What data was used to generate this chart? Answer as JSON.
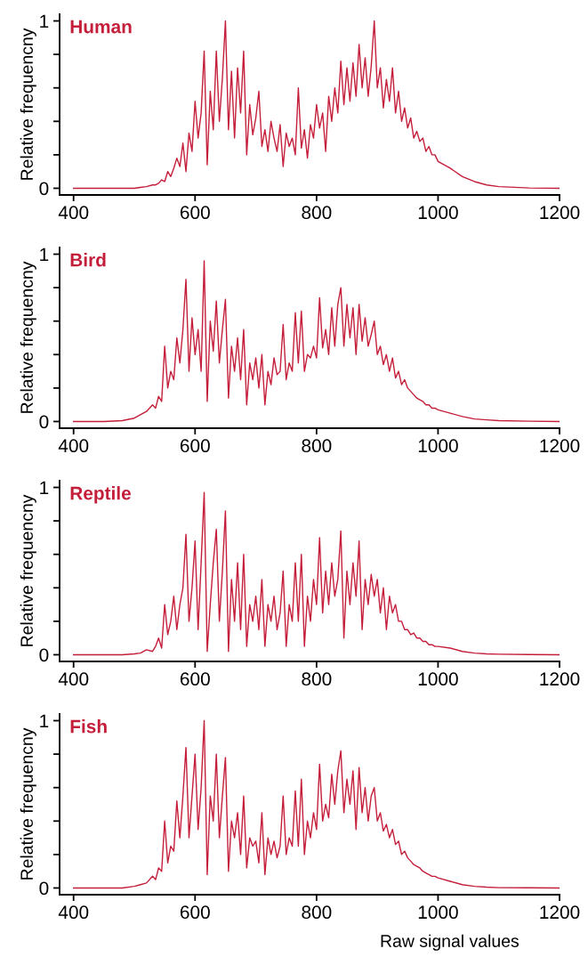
{
  "chart_data": [
    {
      "type": "line",
      "title": "Human",
      "ylabel": "Relative frequencny",
      "color": "#c41e3a",
      "xlim": [
        377,
        1200
      ],
      "ylim": [
        -0.04,
        1.04
      ],
      "xticks": [
        400,
        600,
        800,
        1000,
        1200
      ],
      "yticks": [
        0,
        {
          "value": 0.2,
          "label": null
        },
        {
          "value": 0.4,
          "label": null
        },
        {
          "value": 0.6,
          "label": null
        },
        {
          "value": 0.8,
          "label": null
        },
        1
      ],
      "x": [
        400,
        450,
        480,
        500,
        510,
        520,
        530,
        535,
        540,
        545,
        550,
        555,
        560,
        565,
        570,
        575,
        580,
        585,
        590,
        595,
        600,
        605,
        610,
        615,
        620,
        625,
        630,
        635,
        640,
        645,
        650,
        655,
        660,
        665,
        670,
        675,
        680,
        685,
        690,
        695,
        700,
        705,
        710,
        715,
        720,
        725,
        730,
        735,
        740,
        745,
        750,
        755,
        760,
        765,
        770,
        775,
        780,
        785,
        790,
        795,
        800,
        805,
        810,
        815,
        820,
        825,
        830,
        835,
        840,
        845,
        850,
        855,
        860,
        865,
        870,
        875,
        880,
        885,
        890,
        895,
        900,
        905,
        910,
        915,
        920,
        925,
        930,
        935,
        940,
        945,
        950,
        955,
        960,
        965,
        970,
        975,
        980,
        985,
        990,
        995,
        1000,
        1020,
        1040,
        1060,
        1080,
        1100,
        1150,
        1200
      ],
      "values": [
        0,
        0,
        0,
        0,
        0.005,
        0.01,
        0.02,
        0.02,
        0.03,
        0.05,
        0.04,
        0.1,
        0.07,
        0.12,
        0.18,
        0.13,
        0.27,
        0.1,
        0.33,
        0.22,
        0.52,
        0.3,
        0.45,
        0.82,
        0.14,
        0.58,
        0.35,
        0.82,
        0.4,
        0.66,
        1.0,
        0.35,
        0.7,
        0.3,
        0.72,
        0.45,
        0.82,
        0.2,
        0.5,
        0.32,
        0.42,
        0.58,
        0.25,
        0.35,
        0.22,
        0.4,
        0.3,
        0.22,
        0.38,
        0.13,
        0.33,
        0.25,
        0.3,
        0.2,
        0.6,
        0.24,
        0.35,
        0.18,
        0.38,
        0.3,
        0.5,
        0.36,
        0.45,
        0.22,
        0.55,
        0.4,
        0.6,
        0.45,
        0.76,
        0.5,
        0.72,
        0.52,
        0.75,
        0.55,
        0.86,
        0.6,
        0.78,
        0.55,
        0.73,
        1.0,
        0.6,
        0.72,
        0.48,
        0.65,
        0.52,
        0.72,
        0.45,
        0.58,
        0.4,
        0.48,
        0.36,
        0.42,
        0.3,
        0.34,
        0.28,
        0.3,
        0.22,
        0.25,
        0.2,
        0.2,
        0.16,
        0.12,
        0.07,
        0.04,
        0.02,
        0.01,
        0.002,
        0
      ]
    },
    {
      "type": "line",
      "title": "Bird",
      "ylabel": "Relative frequencny",
      "color": "#c41e3a",
      "xlim": [
        377,
        1200
      ],
      "ylim": [
        -0.04,
        1.04
      ],
      "xticks": [
        400,
        600,
        800,
        1000,
        1200
      ],
      "yticks": [
        0,
        {
          "value": 0.2,
          "label": null
        },
        {
          "value": 0.4,
          "label": null
        },
        {
          "value": 0.6,
          "label": null
        },
        {
          "value": 0.8,
          "label": null
        },
        1
      ],
      "x": [
        400,
        450,
        480,
        500,
        510,
        520,
        530,
        535,
        540,
        545,
        550,
        555,
        560,
        565,
        570,
        575,
        580,
        585,
        590,
        595,
        600,
        605,
        610,
        615,
        620,
        625,
        630,
        635,
        640,
        645,
        650,
        655,
        660,
        665,
        670,
        675,
        680,
        685,
        690,
        695,
        700,
        705,
        710,
        715,
        720,
        725,
        730,
        735,
        740,
        745,
        750,
        755,
        760,
        765,
        770,
        775,
        780,
        785,
        790,
        795,
        800,
        805,
        810,
        815,
        820,
        825,
        830,
        835,
        840,
        845,
        850,
        855,
        860,
        865,
        870,
        875,
        880,
        885,
        890,
        895,
        900,
        905,
        910,
        915,
        920,
        925,
        930,
        935,
        940,
        945,
        950,
        955,
        960,
        965,
        970,
        975,
        980,
        985,
        990,
        995,
        1000,
        1020,
        1040,
        1060,
        1080,
        1100,
        1150,
        1200
      ],
      "values": [
        0,
        0,
        0.005,
        0.02,
        0.04,
        0.06,
        0.1,
        0.08,
        0.15,
        0.12,
        0.45,
        0.2,
        0.3,
        0.25,
        0.5,
        0.35,
        0.55,
        0.85,
        0.3,
        0.62,
        0.4,
        0.55,
        0.3,
        0.96,
        0.12,
        0.6,
        0.42,
        0.72,
        0.35,
        0.55,
        0.73,
        0.14,
        0.45,
        0.3,
        0.5,
        0.25,
        0.55,
        0.1,
        0.35,
        0.25,
        0.38,
        0.2,
        0.4,
        0.1,
        0.3,
        0.22,
        0.38,
        0.28,
        0.3,
        0.58,
        0.25,
        0.35,
        0.3,
        0.65,
        0.35,
        0.66,
        0.3,
        0.4,
        0.38,
        0.45,
        0.38,
        0.74,
        0.44,
        0.55,
        0.4,
        0.68,
        0.45,
        0.7,
        0.8,
        0.45,
        0.7,
        0.5,
        0.68,
        0.4,
        0.7,
        0.48,
        0.62,
        0.45,
        0.52,
        0.6,
        0.4,
        0.45,
        0.34,
        0.4,
        0.3,
        0.38,
        0.26,
        0.3,
        0.22,
        0.25,
        0.2,
        0.18,
        0.16,
        0.14,
        0.13,
        0.12,
        0.1,
        0.1,
        0.08,
        0.08,
        0.07,
        0.05,
        0.03,
        0.015,
        0.01,
        0.005,
        0.002,
        0
      ]
    },
    {
      "type": "line",
      "title": "Reptile",
      "ylabel": "Relative frequencny",
      "color": "#c41e3a",
      "xlim": [
        377,
        1200
      ],
      "ylim": [
        -0.04,
        1.04
      ],
      "xticks": [
        400,
        600,
        800,
        1000,
        1200
      ],
      "yticks": [
        0,
        {
          "value": 0.2,
          "label": null
        },
        {
          "value": 0.4,
          "label": null
        },
        {
          "value": 0.6,
          "label": null
        },
        {
          "value": 0.8,
          "label": null
        },
        1
      ],
      "x": [
        400,
        450,
        480,
        500,
        510,
        520,
        530,
        535,
        540,
        545,
        550,
        555,
        560,
        565,
        570,
        575,
        580,
        585,
        590,
        595,
        600,
        605,
        610,
        615,
        620,
        625,
        630,
        635,
        640,
        645,
        650,
        655,
        660,
        665,
        670,
        675,
        680,
        685,
        690,
        695,
        700,
        705,
        710,
        715,
        720,
        725,
        730,
        735,
        740,
        745,
        750,
        755,
        760,
        765,
        770,
        775,
        780,
        785,
        790,
        795,
        800,
        805,
        810,
        815,
        820,
        825,
        830,
        835,
        840,
        845,
        850,
        855,
        860,
        865,
        870,
        875,
        880,
        885,
        890,
        895,
        900,
        905,
        910,
        915,
        920,
        925,
        930,
        935,
        940,
        945,
        950,
        955,
        960,
        965,
        970,
        975,
        980,
        985,
        990,
        995,
        1000,
        1020,
        1040,
        1060,
        1080,
        1100,
        1150,
        1200
      ],
      "values": [
        0,
        0,
        0,
        0.005,
        0.01,
        0.03,
        0.02,
        0.05,
        0.1,
        0.04,
        0.3,
        0.12,
        0.2,
        0.35,
        0.15,
        0.3,
        0.4,
        0.72,
        0.2,
        0.4,
        0.68,
        0.15,
        0.55,
        0.97,
        0.02,
        0.3,
        0.55,
        0.75,
        0.2,
        0.5,
        0.86,
        0.02,
        0.45,
        0.2,
        0.55,
        0.15,
        0.6,
        0.05,
        0.3,
        0.2,
        0.35,
        0.15,
        0.45,
        0.05,
        0.3,
        0.2,
        0.35,
        0.15,
        0.25,
        0.5,
        0.05,
        0.3,
        0.2,
        0.55,
        0.2,
        0.6,
        0.05,
        0.35,
        0.2,
        0.45,
        0.3,
        0.7,
        0.25,
        0.5,
        0.3,
        0.55,
        0.35,
        0.45,
        0.74,
        0.1,
        0.5,
        0.3,
        0.55,
        0.35,
        0.68,
        0.15,
        0.45,
        0.3,
        0.48,
        0.35,
        0.45,
        0.25,
        0.4,
        0.15,
        0.35,
        0.25,
        0.3,
        0.2,
        0.2,
        0.15,
        0.15,
        0.12,
        0.13,
        0.1,
        0.1,
        0.08,
        0.08,
        0.06,
        0.06,
        0.05,
        0.05,
        0.04,
        0.02,
        0.01,
        0.005,
        0.003,
        0.001,
        0
      ]
    },
    {
      "type": "line",
      "title": "Fish",
      "ylabel": "Relative frequencny",
      "xlabel": "Raw signal values",
      "color": "#c41e3a",
      "xlim": [
        377,
        1200
      ],
      "ylim": [
        -0.04,
        1.04
      ],
      "xticks": [
        400,
        600,
        800,
        1000,
        1200
      ],
      "yticks": [
        0,
        {
          "value": 0.2,
          "label": null
        },
        {
          "value": 0.4,
          "label": null
        },
        {
          "value": 0.6,
          "label": null
        },
        {
          "value": 0.8,
          "label": null
        },
        1
      ],
      "x": [
        400,
        450,
        480,
        500,
        510,
        520,
        530,
        535,
        540,
        545,
        550,
        555,
        560,
        565,
        570,
        575,
        580,
        585,
        590,
        595,
        600,
        605,
        610,
        615,
        620,
        625,
        630,
        635,
        640,
        645,
        650,
        655,
        660,
        665,
        670,
        675,
        680,
        685,
        690,
        695,
        700,
        705,
        710,
        715,
        720,
        725,
        730,
        735,
        740,
        745,
        750,
        755,
        760,
        765,
        770,
        775,
        780,
        785,
        790,
        795,
        800,
        805,
        810,
        815,
        820,
        825,
        830,
        835,
        840,
        845,
        850,
        855,
        860,
        865,
        870,
        875,
        880,
        885,
        890,
        895,
        900,
        905,
        910,
        915,
        920,
        925,
        930,
        935,
        940,
        945,
        950,
        955,
        960,
        965,
        970,
        975,
        980,
        985,
        990,
        995,
        1000,
        1020,
        1040,
        1060,
        1080,
        1100,
        1150,
        1200
      ],
      "values": [
        0,
        0,
        0,
        0.01,
        0.02,
        0.03,
        0.07,
        0.05,
        0.12,
        0.1,
        0.4,
        0.15,
        0.25,
        0.22,
        0.52,
        0.3,
        0.55,
        0.84,
        0.3,
        0.55,
        0.8,
        0.35,
        0.6,
        1.0,
        0.08,
        0.55,
        0.4,
        0.8,
        0.3,
        0.55,
        0.78,
        0.1,
        0.4,
        0.3,
        0.45,
        0.2,
        0.55,
        0.12,
        0.3,
        0.25,
        0.28,
        0.15,
        0.45,
        0.08,
        0.3,
        0.2,
        0.28,
        0.18,
        0.25,
        0.55,
        0.2,
        0.3,
        0.25,
        0.58,
        0.25,
        0.65,
        0.2,
        0.4,
        0.3,
        0.45,
        0.35,
        0.74,
        0.4,
        0.5,
        0.42,
        0.68,
        0.5,
        0.7,
        0.82,
        0.45,
        0.65,
        0.5,
        0.7,
        0.35,
        0.72,
        0.45,
        0.6,
        0.4,
        0.55,
        0.6,
        0.4,
        0.45,
        0.34,
        0.38,
        0.3,
        0.35,
        0.26,
        0.28,
        0.2,
        0.22,
        0.18,
        0.16,
        0.14,
        0.13,
        0.12,
        0.1,
        0.09,
        0.08,
        0.07,
        0.07,
        0.06,
        0.04,
        0.02,
        0.01,
        0.005,
        0.002,
        0.001,
        0
      ]
    }
  ]
}
